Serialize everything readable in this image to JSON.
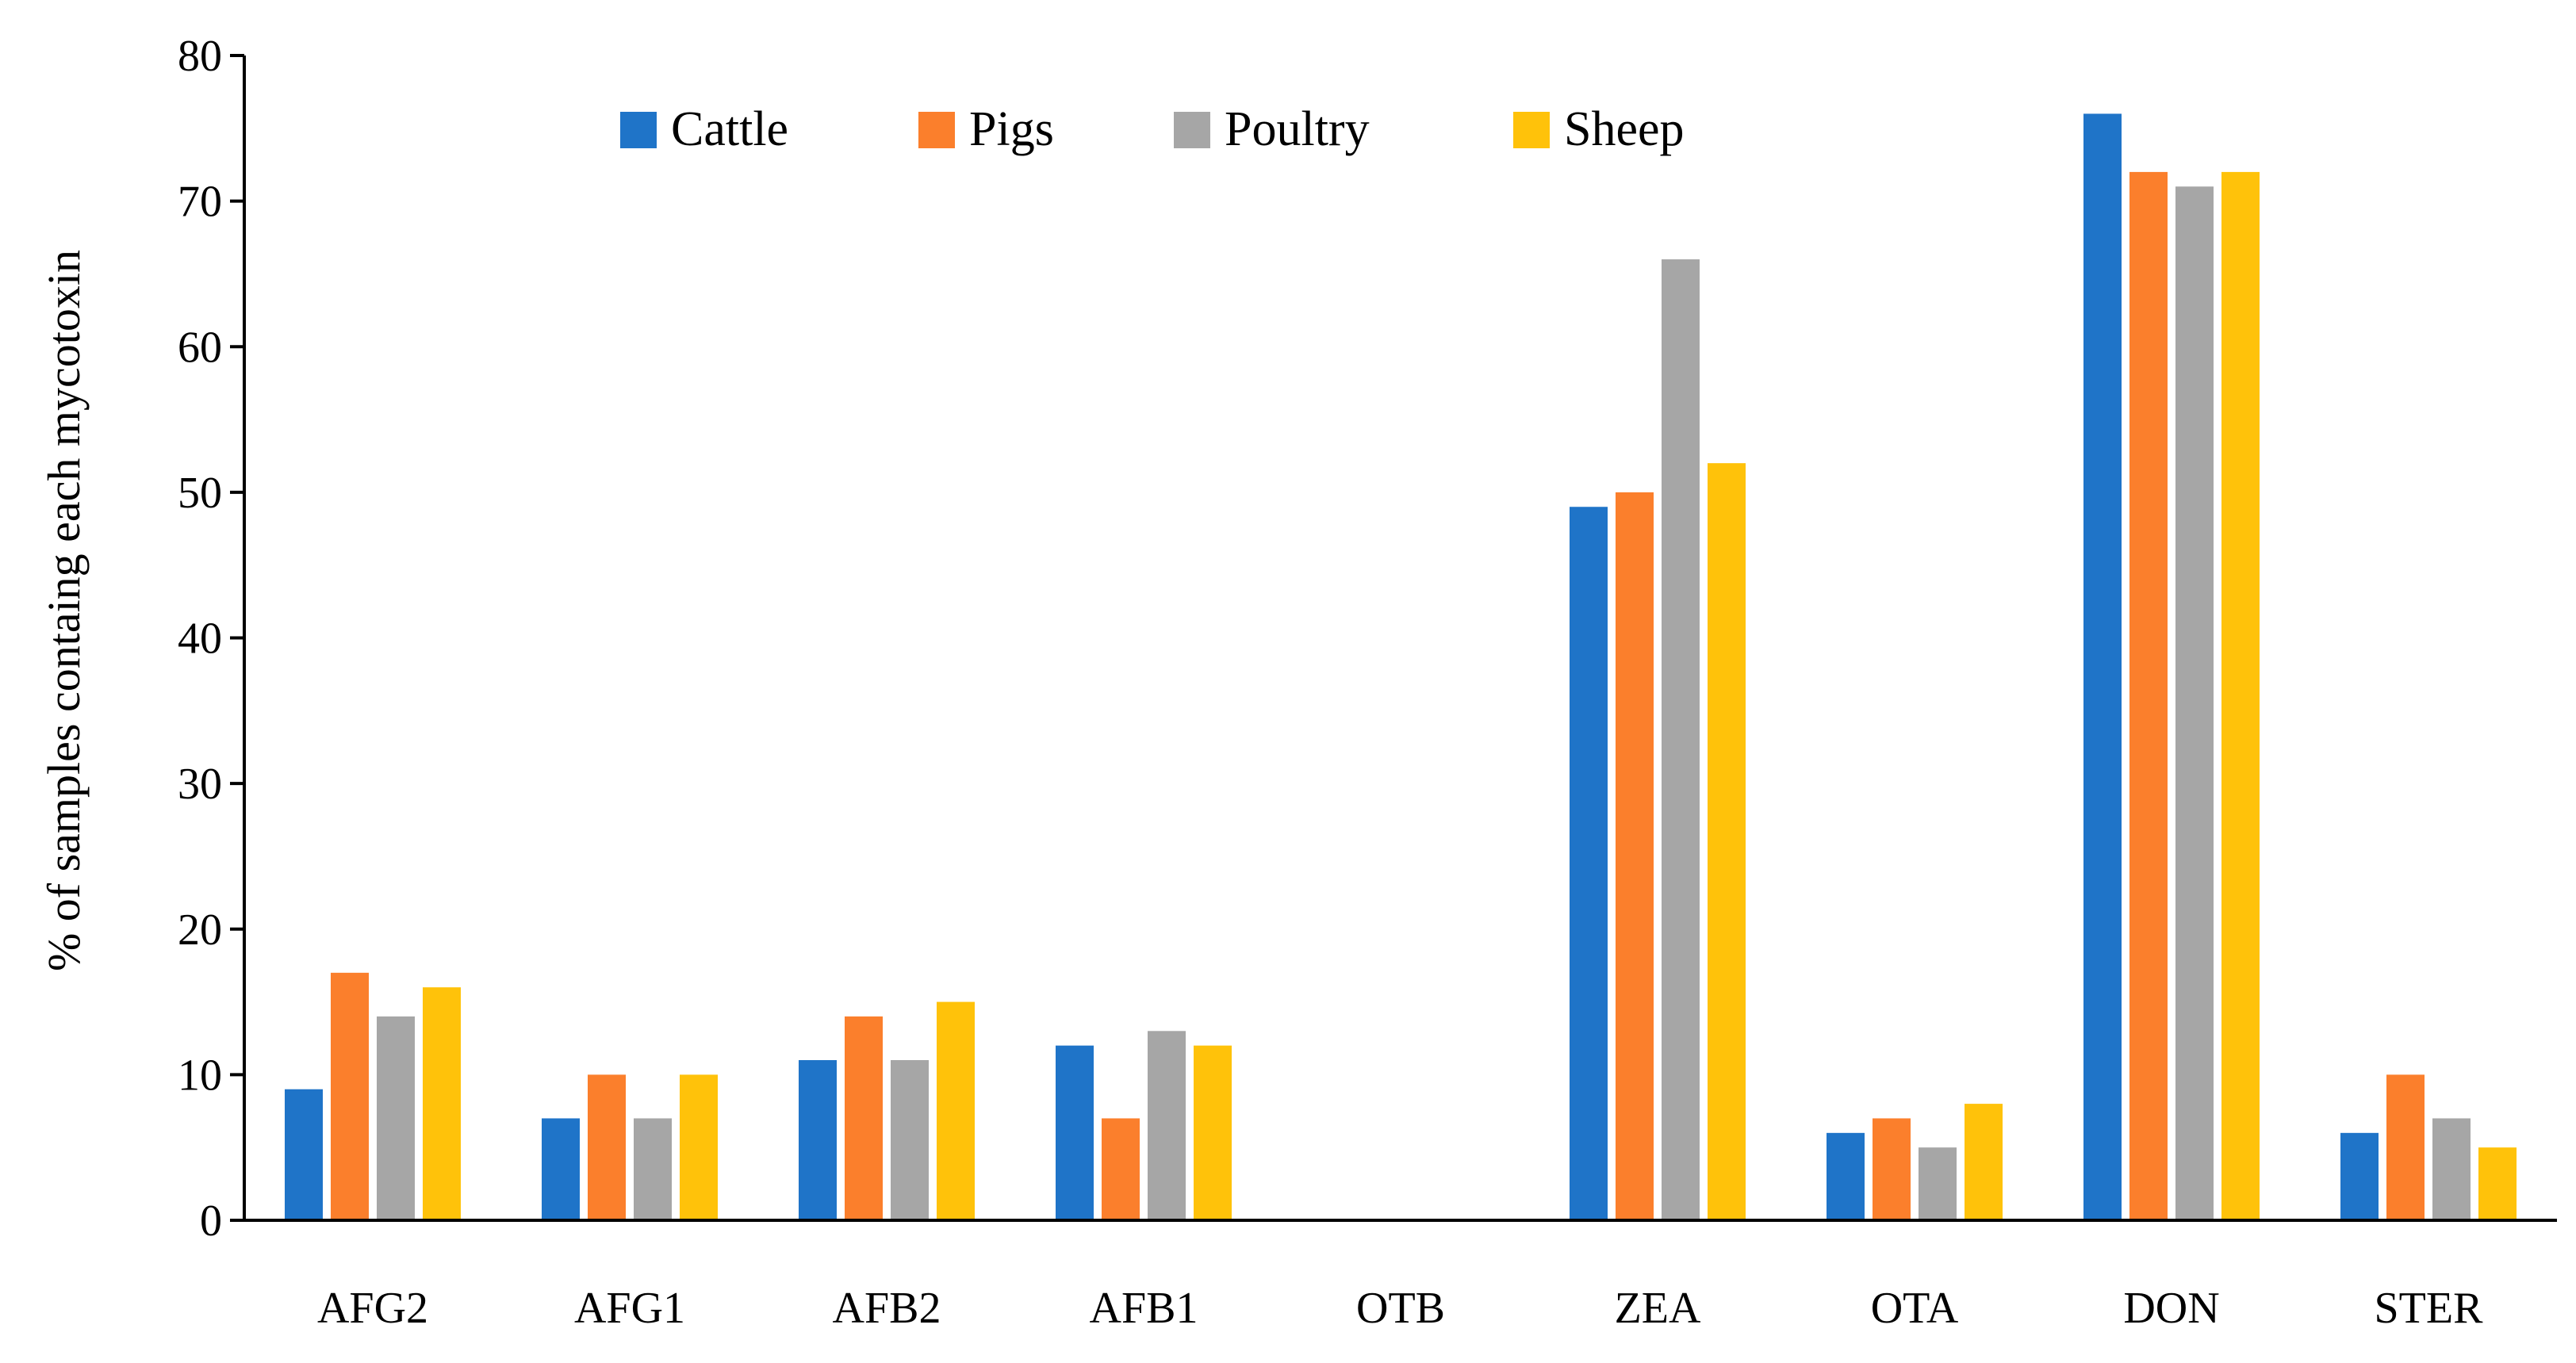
{
  "chart_data": {
    "type": "bar",
    "title": "",
    "xlabel": "",
    "ylabel": "% of samples containg each mycotoxin",
    "ylim": [
      0,
      80
    ],
    "yticks": [
      "0",
      "10",
      "20",
      "30",
      "40",
      "50",
      "60",
      "70",
      "80"
    ],
    "categories": [
      "AFG2",
      "AFG1",
      "AFB2",
      "AFB1",
      "OTB",
      "ZEA",
      "OTA",
      "DON",
      "STER"
    ],
    "series": [
      {
        "name": "Cattle",
        "color": "#1f74c8",
        "values": [
          9,
          7,
          11,
          12,
          0,
          49,
          6,
          76,
          6
        ]
      },
      {
        "name": "Pigs",
        "color": "#fb7f2c",
        "values": [
          17,
          10,
          14,
          7,
          0,
          50,
          7,
          72,
          10
        ]
      },
      {
        "name": "Poultry",
        "color": "#a6a6a6",
        "values": [
          14,
          7,
          11,
          13,
          0,
          66,
          5,
          71,
          7
        ]
      },
      {
        "name": "Sheep",
        "color": "#ffc20a",
        "values": [
          16,
          10,
          15,
          12,
          0,
          52,
          8,
          72,
          5
        ]
      }
    ],
    "legend_position": "top",
    "grid": false
  }
}
